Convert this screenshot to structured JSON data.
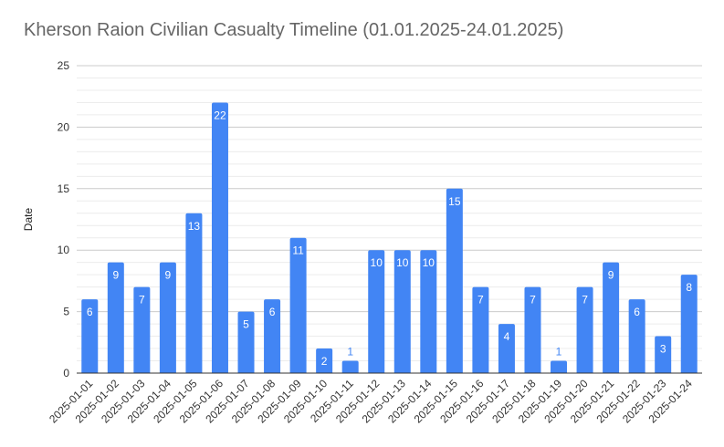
{
  "chart_data": {
    "type": "bar",
    "title": "Kherson Raion Civilian Casualty Timeline (01.01.2025-24.01.2025)",
    "ylabel": "Date",
    "xlabel": "",
    "ylim": [
      0,
      25
    ],
    "yticks": [
      0,
      5,
      10,
      15,
      20,
      25
    ],
    "grid": true,
    "legend": "none",
    "bar_color": "#4285f4",
    "label_color_inside": "#ffffff",
    "label_color_outside": "#4285f4",
    "categories": [
      "2025-01-01",
      "2025-01-02",
      "2025-01-03",
      "2025-01-04",
      "2025-01-05",
      "2025-01-06",
      "2025-01-07",
      "2025-01-08",
      "2025-01-09",
      "2025-01-10",
      "2025-01-11",
      "2025-01-12",
      "2025-01-13",
      "2025-01-14",
      "2025-01-15",
      "2025-01-16",
      "2025-01-17",
      "2025-01-18",
      "2025-01-19",
      "2025-01-20",
      "2025-01-21",
      "2025-01-22",
      "2025-01-23",
      "2025-01-24"
    ],
    "values": [
      6,
      9,
      7,
      9,
      13,
      22,
      5,
      6,
      11,
      2,
      1,
      10,
      10,
      10,
      15,
      7,
      4,
      7,
      1,
      7,
      9,
      6,
      3,
      8
    ]
  }
}
